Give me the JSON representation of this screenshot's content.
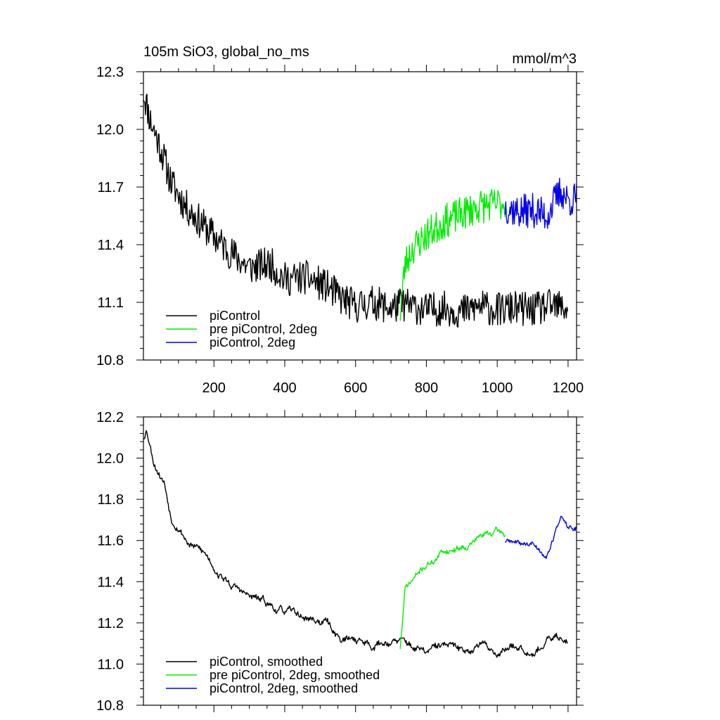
{
  "title": "105m SiO3, global_no_ms",
  "units": "mmol/m^3",
  "colors": {
    "piControl": "#000000",
    "pre_piControl_2deg": "#00ee00",
    "piControl_2deg": "#0000ee",
    "axis": "#000000"
  },
  "chart_data": [
    {
      "type": "line",
      "title": "105m SiO3, global_no_ms",
      "units": "mmol/m^3",
      "xlim": [
        1,
        1224
      ],
      "ylim": [
        10.8,
        12.3
      ],
      "x_ticks": [
        200,
        400,
        600,
        800,
        1000,
        1200
      ],
      "x_tick_labels": [
        "200",
        "400",
        "600",
        "800",
        "1000",
        "1200"
      ],
      "y_ticks": [
        10.8,
        11.1,
        11.4,
        11.7,
        12.0,
        12.3
      ],
      "y_tick_labels": [
        "10.8",
        "11.1",
        "11.4",
        "11.7",
        "12.0",
        "12.3"
      ],
      "legend_position": "bottom-left",
      "legend": [
        "piControl",
        "pre piControl, 2deg",
        "piControl, 2deg"
      ],
      "series": [
        {
          "name": "piControl",
          "color": "#000000",
          "noise": 0.09,
          "seed": 11,
          "x": [
            1,
            20,
            50,
            80,
            120,
            180,
            240,
            300,
            360,
            400,
            460,
            520,
            560,
            600,
            650,
            700,
            730,
            760,
            800,
            850,
            900,
            950,
            1000,
            1050,
            1100,
            1150,
            1200
          ],
          "y": [
            12.2,
            12.05,
            11.9,
            11.72,
            11.6,
            11.48,
            11.37,
            11.28,
            11.3,
            11.22,
            11.23,
            11.18,
            11.12,
            11.08,
            11.1,
            11.07,
            11.09,
            11.08,
            11.06,
            11.07,
            11.05,
            11.08,
            11.06,
            11.07,
            11.06,
            11.08,
            11.07
          ]
        },
        {
          "name": "pre piControl, 2deg",
          "color": "#00ee00",
          "noise": 0.09,
          "seed": 23,
          "x": [
            726,
            740,
            760,
            800,
            850,
            900,
            950,
            1000,
            1022
          ],
          "y": [
            11.05,
            11.3,
            11.38,
            11.45,
            11.52,
            11.56,
            11.6,
            11.61,
            11.62
          ]
        },
        {
          "name": "piControl, 2deg",
          "color": "#0000ee",
          "noise": 0.09,
          "seed": 37,
          "x": [
            1022,
            1060,
            1100,
            1140,
            1160,
            1180,
            1200,
            1224
          ],
          "y": [
            11.6,
            11.57,
            11.58,
            11.55,
            11.62,
            11.68,
            11.63,
            11.64
          ]
        }
      ]
    },
    {
      "type": "line",
      "title": "",
      "xlim": [
        1,
        1224
      ],
      "ylim": [
        10.8,
        12.2
      ],
      "x_ticks": [
        200,
        400,
        600,
        800,
        1000,
        1200
      ],
      "x_tick_labels": [],
      "y_ticks": [
        10.8,
        11.0,
        11.2,
        11.4,
        11.6,
        11.8,
        12.0,
        12.2
      ],
      "y_tick_labels": [
        "10.8",
        "11.0",
        "11.2",
        "11.4",
        "11.6",
        "11.8",
        "12.0",
        "12.2"
      ],
      "legend_position": "bottom-left",
      "legend": [
        "piControl, smoothed",
        "pre piControl, 2deg, smoothed",
        "piControl, 2deg, smoothed"
      ],
      "series": [
        {
          "name": "piControl, smoothed",
          "color": "#000000",
          "noise": 0.045,
          "seed": 53,
          "x": [
            1,
            10,
            30,
            60,
            80,
            100,
            130,
            180,
            240,
            300,
            360,
            400,
            460,
            520,
            560,
            600,
            650,
            700,
            730,
            760,
            800,
            850,
            900,
            950,
            1000,
            1050,
            1100,
            1150,
            1200
          ],
          "y": [
            12.1,
            12.15,
            12.0,
            11.9,
            11.72,
            11.7,
            11.6,
            11.52,
            11.4,
            11.32,
            11.28,
            11.25,
            11.22,
            11.2,
            11.12,
            11.12,
            11.1,
            11.12,
            11.1,
            11.08,
            11.05,
            11.08,
            11.05,
            11.1,
            11.06,
            11.1,
            11.09,
            11.12,
            11.13
          ]
        },
        {
          "name": "pre piControl, 2deg, smoothed",
          "color": "#00ee00",
          "noise": 0.04,
          "seed": 71,
          "x": [
            726,
            740,
            760,
            800,
            850,
            900,
            950,
            1000,
            1022
          ],
          "y": [
            11.08,
            11.36,
            11.4,
            11.48,
            11.55,
            11.58,
            11.62,
            11.64,
            11.62
          ]
        },
        {
          "name": "piControl, 2deg, smoothed",
          "color": "#0000ee",
          "noise": 0.035,
          "seed": 89,
          "x": [
            1022,
            1060,
            1100,
            1140,
            1160,
            1180,
            1200,
            1224
          ],
          "y": [
            11.6,
            11.58,
            11.58,
            11.53,
            11.62,
            11.72,
            11.66,
            11.66
          ]
        }
      ]
    }
  ]
}
